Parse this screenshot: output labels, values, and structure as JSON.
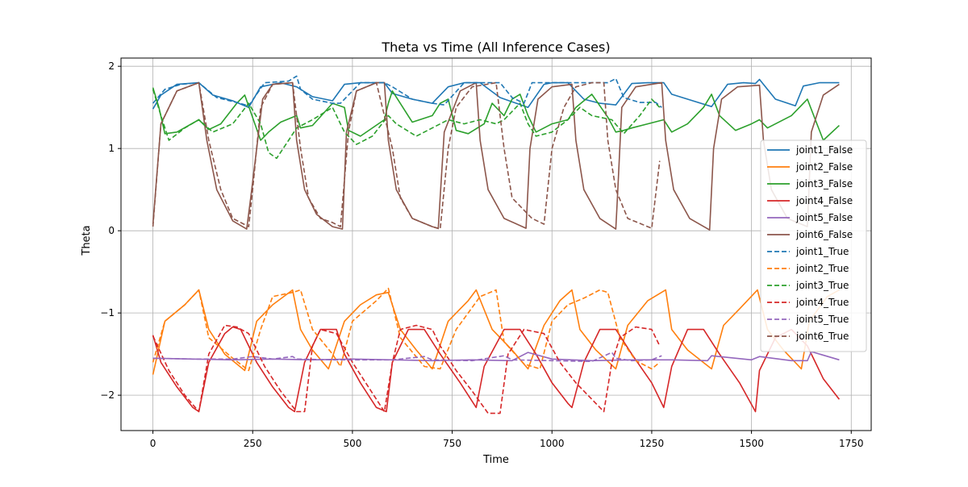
{
  "chart_data": {
    "type": "line",
    "title": "Theta vs Time (All Inference Cases)",
    "xlabel": "Time",
    "ylabel": "Theta",
    "xlim": [
      -80,
      1800
    ],
    "ylim": [
      -2.43,
      2.1
    ],
    "xticks": [
      0,
      250,
      500,
      750,
      1000,
      1250,
      1500,
      1750
    ],
    "yticks": [
      -2,
      -1,
      0,
      1,
      2
    ],
    "xtick_labels": [
      "0",
      "250",
      "500",
      "750",
      "1000",
      "1250",
      "1500",
      "1750"
    ],
    "ytick_labels": [
      "−2",
      "−1",
      "0",
      "1",
      "2"
    ],
    "grid": true,
    "legend_position": "center-right",
    "series": [
      {
        "name": "joint1_False",
        "color": "#1f77b4",
        "dash": "solid",
        "x": [
          0,
          20,
          60,
          115,
          150,
          200,
          240,
          270,
          320,
          360,
          400,
          450,
          480,
          520,
          580,
          600,
          650,
          700,
          740,
          780,
          820,
          870,
          940,
          980,
          1000,
          1040,
          1080,
          1120,
          1160,
          1200,
          1240,
          1280,
          1300,
          1340,
          1400,
          1440,
          1480,
          1510,
          1520,
          1560,
          1610,
          1630,
          1670,
          1720
        ],
        "y": [
          1.48,
          1.65,
          1.78,
          1.8,
          1.65,
          1.58,
          1.5,
          1.75,
          1.8,
          1.75,
          1.63,
          1.58,
          1.78,
          1.8,
          1.8,
          1.67,
          1.6,
          1.55,
          1.75,
          1.8,
          1.8,
          1.62,
          1.5,
          1.78,
          1.8,
          1.8,
          1.6,
          1.55,
          1.53,
          1.79,
          1.8,
          1.8,
          1.66,
          1.6,
          1.51,
          1.78,
          1.8,
          1.79,
          1.84,
          1.6,
          1.52,
          1.76,
          1.8,
          1.8
        ]
      },
      {
        "name": "joint2_False",
        "color": "#ff7f0e",
        "dash": "solid",
        "x": [
          0,
          30,
          80,
          115,
          140,
          180,
          230,
          260,
          300,
          350,
          370,
          400,
          440,
          480,
          520,
          560,
          590,
          620,
          660,
          700,
          740,
          790,
          810,
          850,
          900,
          940,
          980,
          1020,
          1050,
          1070,
          1110,
          1160,
          1190,
          1240,
          1285,
          1300,
          1340,
          1400,
          1430,
          1470,
          1515,
          1540,
          1580,
          1625,
          1645,
          1690,
          1720
        ],
        "y": [
          -1.75,
          -1.1,
          -0.9,
          -0.72,
          -1.2,
          -1.5,
          -1.7,
          -1.1,
          -0.9,
          -0.72,
          -1.2,
          -1.45,
          -1.68,
          -1.1,
          -0.9,
          -0.78,
          -0.75,
          -1.2,
          -1.45,
          -1.68,
          -1.1,
          -0.85,
          -0.72,
          -1.2,
          -1.45,
          -1.68,
          -1.15,
          -0.85,
          -0.72,
          -1.2,
          -1.45,
          -1.68,
          -1.15,
          -0.85,
          -0.72,
          -1.2,
          -1.45,
          -1.68,
          -1.15,
          -0.95,
          -0.72,
          -1.2,
          -1.45,
          -1.68,
          -1.1,
          -0.8,
          -0.72
        ]
      },
      {
        "name": "joint3_False",
        "color": "#2ca02c",
        "dash": "solid",
        "x": [
          0,
          15,
          30,
          60,
          115,
          140,
          170,
          210,
          230,
          270,
          290,
          320,
          360,
          370,
          400,
          450,
          480,
          490,
          520,
          580,
          590,
          600,
          650,
          700,
          720,
          740,
          760,
          790,
          830,
          850,
          880,
          900,
          920,
          940,
          960,
          1000,
          1040,
          1060,
          1100,
          1140,
          1160,
          1180,
          1200,
          1240,
          1280,
          1300,
          1340,
          1380,
          1400,
          1420,
          1460,
          1500,
          1520,
          1540,
          1600,
          1640,
          1680,
          1720
        ],
        "y": [
          1.74,
          1.5,
          1.18,
          1.2,
          1.35,
          1.23,
          1.3,
          1.55,
          1.65,
          1.1,
          1.2,
          1.32,
          1.4,
          1.25,
          1.28,
          1.55,
          1.5,
          1.22,
          1.15,
          1.35,
          1.55,
          1.7,
          1.32,
          1.4,
          1.55,
          1.6,
          1.22,
          1.18,
          1.3,
          1.55,
          1.4,
          1.6,
          1.66,
          1.4,
          1.2,
          1.3,
          1.35,
          1.5,
          1.66,
          1.38,
          1.2,
          1.22,
          1.25,
          1.3,
          1.35,
          1.2,
          1.3,
          1.5,
          1.66,
          1.4,
          1.22,
          1.3,
          1.35,
          1.25,
          1.4,
          1.6,
          1.1,
          1.28
        ]
      },
      {
        "name": "joint4_False",
        "color": "#d62728",
        "dash": "solid",
        "x": [
          0,
          20,
          60,
          100,
          115,
          140,
          180,
          200,
          220,
          260,
          300,
          340,
          355,
          380,
          420,
          460,
          480,
          520,
          560,
          585,
          600,
          640,
          680,
          720,
          770,
          810,
          830,
          880,
          920,
          960,
          1000,
          1040,
          1050,
          1080,
          1120,
          1160,
          1200,
          1250,
          1280,
          1300,
          1340,
          1380,
          1420,
          1470,
          1510,
          1520,
          1560,
          1600,
          1640,
          1680,
          1720
        ],
        "y": [
          -1.27,
          -1.6,
          -1.9,
          -2.15,
          -2.2,
          -1.6,
          -1.25,
          -1.17,
          -1.2,
          -1.6,
          -1.9,
          -2.15,
          -2.2,
          -1.6,
          -1.2,
          -1.2,
          -1.5,
          -1.85,
          -2.15,
          -2.2,
          -1.6,
          -1.2,
          -1.2,
          -1.5,
          -1.85,
          -2.15,
          -1.65,
          -1.2,
          -1.2,
          -1.5,
          -1.85,
          -2.1,
          -2.15,
          -1.6,
          -1.2,
          -1.2,
          -1.5,
          -1.85,
          -2.15,
          -1.65,
          -1.2,
          -1.2,
          -1.5,
          -1.85,
          -2.2,
          -1.7,
          -1.3,
          -1.2,
          -1.4,
          -1.8,
          -2.05
        ]
      },
      {
        "name": "joint5_False",
        "color": "#9467bd",
        "dash": "solid",
        "x": [
          0,
          100,
          200,
          300,
          400,
          500,
          600,
          700,
          800,
          900,
          940,
          1000,
          1100,
          1200,
          1300,
          1390,
          1400,
          1500,
          1520,
          1600,
          1640,
          1650,
          1720
        ],
        "y": [
          -1.55,
          -1.56,
          -1.57,
          -1.56,
          -1.57,
          -1.56,
          -1.57,
          -1.58,
          -1.57,
          -1.58,
          -1.48,
          -1.56,
          -1.58,
          -1.57,
          -1.57,
          -1.58,
          -1.52,
          -1.57,
          -1.53,
          -1.58,
          -1.58,
          -1.47,
          -1.57
        ]
      },
      {
        "name": "joint6_False",
        "color": "#8c564b",
        "dash": "solid",
        "x": [
          0,
          20,
          60,
          115,
          135,
          160,
          200,
          235,
          245,
          275,
          300,
          350,
          360,
          380,
          410,
          450,
          475,
          485,
          510,
          560,
          580,
          590,
          610,
          650,
          700,
          715,
          730,
          770,
          810,
          820,
          840,
          880,
          935,
          945,
          965,
          1000,
          1050,
          1060,
          1080,
          1120,
          1160,
          1165,
          1175,
          1210,
          1275,
          1285,
          1305,
          1345,
          1395,
          1405,
          1425,
          1465,
          1520,
          1530,
          1550,
          1590,
          1640,
          1650,
          1680,
          1720
        ],
        "y": [
          0.08,
          1.3,
          1.7,
          1.8,
          1.1,
          0.5,
          0.12,
          0.02,
          0.4,
          1.6,
          1.78,
          1.8,
          1.1,
          0.5,
          0.2,
          0.05,
          0.02,
          1.2,
          1.7,
          1.8,
          1.8,
          1.1,
          0.5,
          0.15,
          0.05,
          0.03,
          1.2,
          1.7,
          1.8,
          1.1,
          0.5,
          0.15,
          0.03,
          1.0,
          1.6,
          1.75,
          1.78,
          1.1,
          0.5,
          0.15,
          0.02,
          0.5,
          1.5,
          1.75,
          1.8,
          1.1,
          0.5,
          0.15,
          0.01,
          1.0,
          1.6,
          1.75,
          1.77,
          1.1,
          0.5,
          0.15,
          0.05,
          1.2,
          1.65,
          1.78
        ]
      },
      {
        "name": "joint1_True",
        "color": "#1f77b4",
        "dash": "dash",
        "x": [
          0,
          30,
          70,
          115,
          160,
          210,
          240,
          280,
          340,
          360,
          370,
          400,
          450,
          470,
          520,
          580,
          600,
          650,
          700,
          730,
          780,
          830,
          870,
          900,
          930,
          950,
          1000,
          1060,
          1100,
          1140,
          1160,
          1180,
          1220,
          1260,
          1275
        ],
        "y": [
          1.55,
          1.72,
          1.78,
          1.8,
          1.62,
          1.56,
          1.52,
          1.8,
          1.82,
          1.88,
          1.72,
          1.6,
          1.55,
          1.55,
          1.8,
          1.8,
          1.75,
          1.6,
          1.55,
          1.53,
          1.8,
          1.8,
          1.8,
          1.62,
          1.55,
          1.8,
          1.8,
          1.8,
          1.8,
          1.8,
          1.85,
          1.62,
          1.56,
          1.56,
          1.5
        ]
      },
      {
        "name": "joint2_True",
        "color": "#ff7f0e",
        "dash": "dash",
        "x": [
          0,
          30,
          80,
          115,
          140,
          200,
          240,
          270,
          300,
          350,
          370,
          400,
          450,
          470,
          500,
          560,
          590,
          620,
          680,
          720,
          760,
          820,
          860,
          880,
          930,
          970,
          1000,
          1040,
          1080,
          1120,
          1140,
          1170,
          1210,
          1250,
          1270
        ],
        "y": [
          -1.6,
          -1.1,
          -0.9,
          -0.72,
          -1.3,
          -1.55,
          -1.7,
          -1.2,
          -0.8,
          -0.75,
          -0.72,
          -1.2,
          -1.5,
          -1.65,
          -1.1,
          -0.85,
          -0.7,
          -1.3,
          -1.65,
          -1.68,
          -1.2,
          -0.8,
          -0.72,
          -1.35,
          -1.62,
          -1.68,
          -1.1,
          -0.9,
          -0.82,
          -0.72,
          -0.75,
          -1.3,
          -1.58,
          -1.68,
          -1.6
        ]
      },
      {
        "name": "joint3_True",
        "color": "#2ca02c",
        "dash": "dash",
        "x": [
          0,
          20,
          40,
          80,
          115,
          150,
          200,
          240,
          270,
          290,
          310,
          340,
          360,
          400,
          450,
          480,
          510,
          550,
          590,
          610,
          660,
          700,
          740,
          780,
          820,
          860,
          880,
          920,
          940,
          960,
          1000,
          1040,
          1070,
          1100,
          1150,
          1180,
          1220,
          1250,
          1270
        ],
        "y": [
          1.72,
          1.4,
          1.1,
          1.25,
          1.35,
          1.2,
          1.3,
          1.55,
          1.3,
          0.95,
          0.88,
          1.1,
          1.25,
          1.35,
          1.5,
          1.2,
          1.05,
          1.15,
          1.4,
          1.3,
          1.15,
          1.25,
          1.35,
          1.3,
          1.35,
          1.3,
          1.35,
          1.55,
          1.3,
          1.15,
          1.2,
          1.35,
          1.5,
          1.4,
          1.35,
          1.18,
          1.4,
          1.6,
          1.5
        ]
      },
      {
        "name": "joint4_True",
        "color": "#d62728",
        "dash": "dash",
        "x": [
          0,
          40,
          80,
          115,
          140,
          180,
          210,
          240,
          280,
          320,
          360,
          380,
          400,
          420,
          460,
          500,
          540,
          580,
          600,
          620,
          660,
          700,
          720,
          760,
          800,
          840,
          870,
          890,
          930,
          980,
          1020,
          1060,
          1100,
          1130,
          1150,
          1170,
          1210,
          1250,
          1270
        ],
        "y": [
          -1.28,
          -1.7,
          -2.0,
          -2.2,
          -1.5,
          -1.15,
          -1.17,
          -1.25,
          -1.65,
          -1.95,
          -2.2,
          -2.2,
          -1.4,
          -1.2,
          -1.25,
          -1.6,
          -1.9,
          -2.2,
          -1.6,
          -1.2,
          -1.15,
          -1.2,
          -1.4,
          -1.7,
          -1.95,
          -2.22,
          -2.22,
          -1.5,
          -1.2,
          -1.25,
          -1.6,
          -1.85,
          -2.05,
          -2.2,
          -1.6,
          -1.3,
          -1.17,
          -1.2,
          -1.4
        ]
      },
      {
        "name": "joint5_True",
        "color": "#9467bd",
        "dash": "dash",
        "x": [
          0,
          100,
          200,
          250,
          300,
          350,
          360,
          450,
          500,
          600,
          680,
          700,
          800,
          880,
          900,
          1000,
          1100,
          1150,
          1160,
          1200,
          1250,
          1275
        ],
        "y": [
          -1.55,
          -1.56,
          -1.56,
          -1.53,
          -1.56,
          -1.53,
          -1.56,
          -1.57,
          -1.57,
          -1.57,
          -1.53,
          -1.57,
          -1.58,
          -1.52,
          -1.57,
          -1.58,
          -1.59,
          -1.48,
          -1.55,
          -1.58,
          -1.57,
          -1.52
        ]
      },
      {
        "name": "joint6_True",
        "color": "#8c564b",
        "dash": "dash",
        "x": [
          0,
          20,
          60,
          115,
          140,
          170,
          200,
          240,
          250,
          270,
          300,
          350,
          370,
          390,
          420,
          450,
          470,
          490,
          510,
          560,
          600,
          620,
          650,
          700,
          720,
          740,
          760,
          800,
          860,
          880,
          900,
          950,
          980,
          1000,
          1030,
          1060,
          1100,
          1130,
          1140,
          1160,
          1190,
          1240,
          1250,
          1270
        ],
        "y": [
          0.05,
          1.3,
          1.7,
          1.8,
          1.1,
          0.5,
          0.15,
          0.05,
          0.5,
          1.5,
          1.78,
          1.8,
          1.0,
          0.4,
          0.15,
          0.1,
          0.05,
          1.2,
          1.7,
          1.8,
          1.0,
          0.4,
          0.15,
          0.05,
          0.02,
          1.0,
          1.5,
          1.75,
          1.8,
          1.0,
          0.4,
          0.15,
          0.08,
          1.0,
          1.5,
          1.75,
          1.8,
          1.8,
          1.1,
          0.5,
          0.15,
          0.05,
          0.03,
          0.85
        ]
      }
    ]
  }
}
